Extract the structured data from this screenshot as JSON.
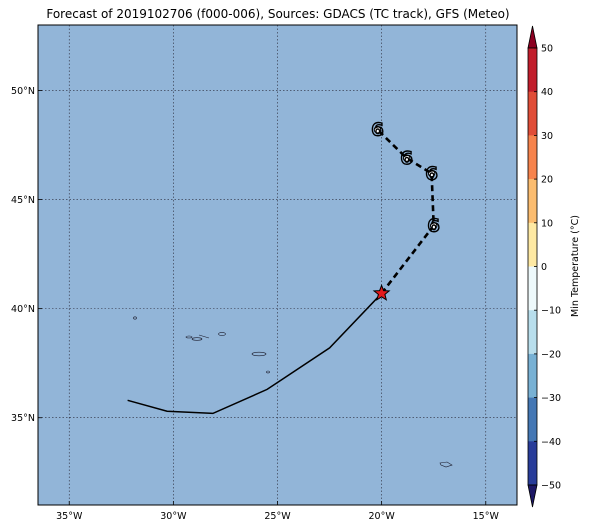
{
  "title": "Forecast of 2019102706 (f000-006), Sources: GDACS (TC track), GFS (Meteo)",
  "map": {
    "lon_range": [
      -36.5,
      -13.5
    ],
    "lat_range": [
      31.0,
      53.0
    ],
    "ocean_color": "#92b5d8",
    "gridlines": true,
    "x_ticks": [
      "35°W",
      "30°W",
      "25°W",
      "20°W",
      "15°W"
    ],
    "x_tick_lons": [
      -35,
      -30,
      -25,
      -20,
      -15
    ],
    "y_ticks": [
      "35°N",
      "40°N",
      "45°N",
      "50°N"
    ],
    "y_tick_lats": [
      35,
      40,
      45,
      50
    ]
  },
  "track": {
    "past_path": [
      [
        -32.2,
        35.8
      ],
      [
        -30.3,
        35.3
      ],
      [
        -28.1,
        35.2
      ],
      [
        -25.5,
        36.3
      ],
      [
        -22.5,
        38.2
      ],
      [
        -20.0,
        40.7
      ]
    ],
    "forecast_path": [
      [
        -20.0,
        40.7
      ],
      [
        -17.5,
        43.8
      ],
      [
        -17.6,
        46.2
      ],
      [
        -18.8,
        46.9
      ],
      [
        -20.2,
        48.2
      ]
    ],
    "current_position": [
      -20.0,
      40.7
    ],
    "current_marker_color": "#e41a1c",
    "symbols": [
      {
        "lon": -17.5,
        "lat": 43.8,
        "icon": "tropical-storm-symbol"
      },
      {
        "lon": -17.6,
        "lat": 46.2,
        "icon": "tropical-storm-symbol"
      },
      {
        "lon": -18.8,
        "lat": 46.9,
        "icon": "tropical-storm-symbol"
      },
      {
        "lon": -20.2,
        "lat": 48.2,
        "icon": "tropical-storm-symbol"
      }
    ],
    "symbol_glyph": "6"
  },
  "colorbar": {
    "label": "Min Temperature (°C)",
    "ticks": [
      "50",
      "40",
      "30",
      "20",
      "10",
      "0",
      "−10",
      "−20",
      "−30",
      "−40",
      "−50"
    ],
    "colors_top_to_bottom": [
      "#8b0021",
      "#c11d2b",
      "#e04d37",
      "#f6834c",
      "#fbbc6f",
      "#fee9a3",
      "#eef9fb",
      "#b8deec",
      "#78b1d4",
      "#4477b4",
      "#283c99",
      "#1d1866"
    ]
  }
}
